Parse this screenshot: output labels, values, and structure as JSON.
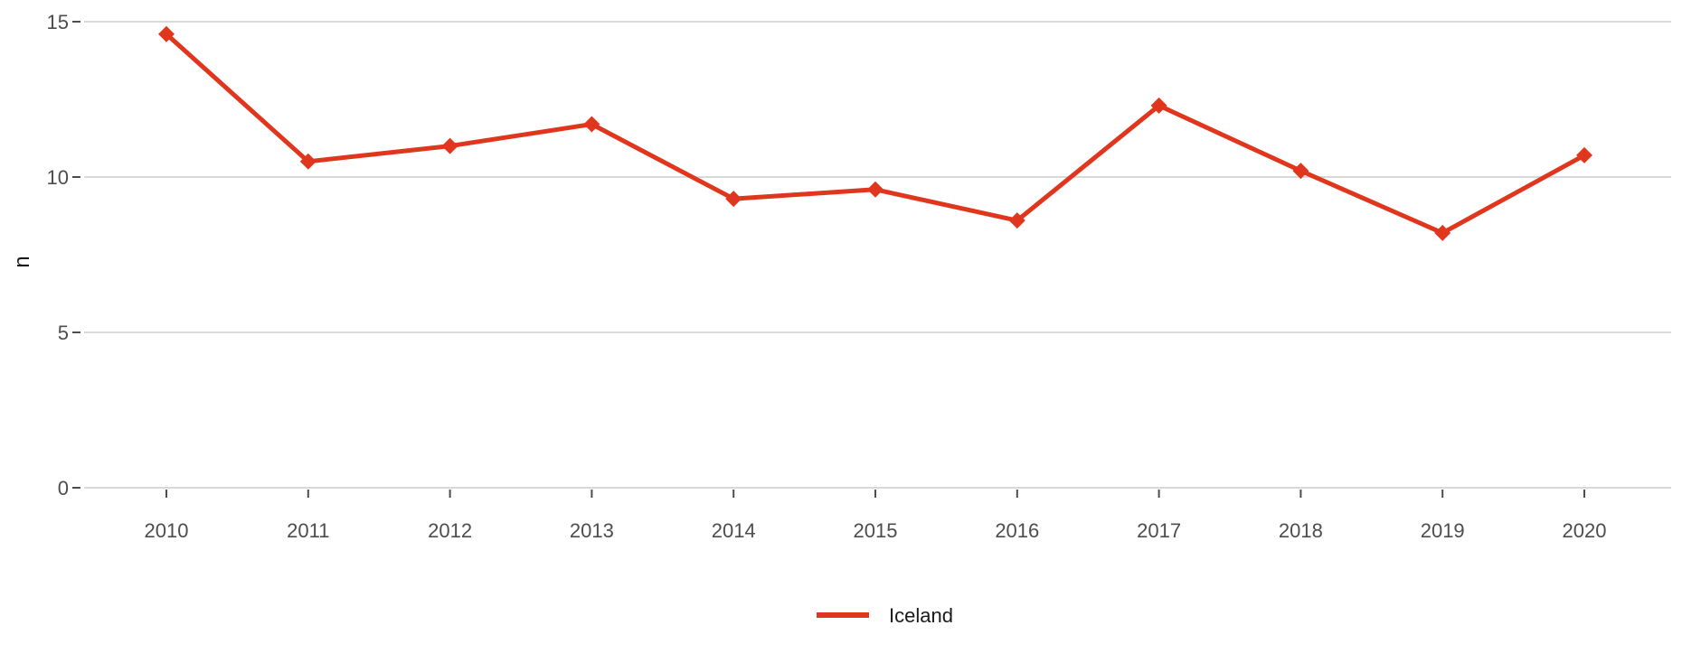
{
  "chart_data": {
    "type": "line",
    "title": "",
    "xlabel": "",
    "ylabel": "n",
    "ylim": [
      0,
      15
    ],
    "yticks": [
      "0",
      "5",
      "10",
      "15"
    ],
    "categories": [
      "2010",
      "2011",
      "2012",
      "2013",
      "2014",
      "2015",
      "2016",
      "2017",
      "2018",
      "2019",
      "2020"
    ],
    "series": [
      {
        "name": "Iceland",
        "color": "#e0361e",
        "marker": "diamond",
        "values": [
          14.6,
          10.5,
          11.0,
          11.7,
          9.3,
          9.6,
          8.6,
          12.3,
          10.2,
          8.2,
          10.7
        ]
      }
    ],
    "grid": "horizontal",
    "legend_position": "bottom"
  }
}
